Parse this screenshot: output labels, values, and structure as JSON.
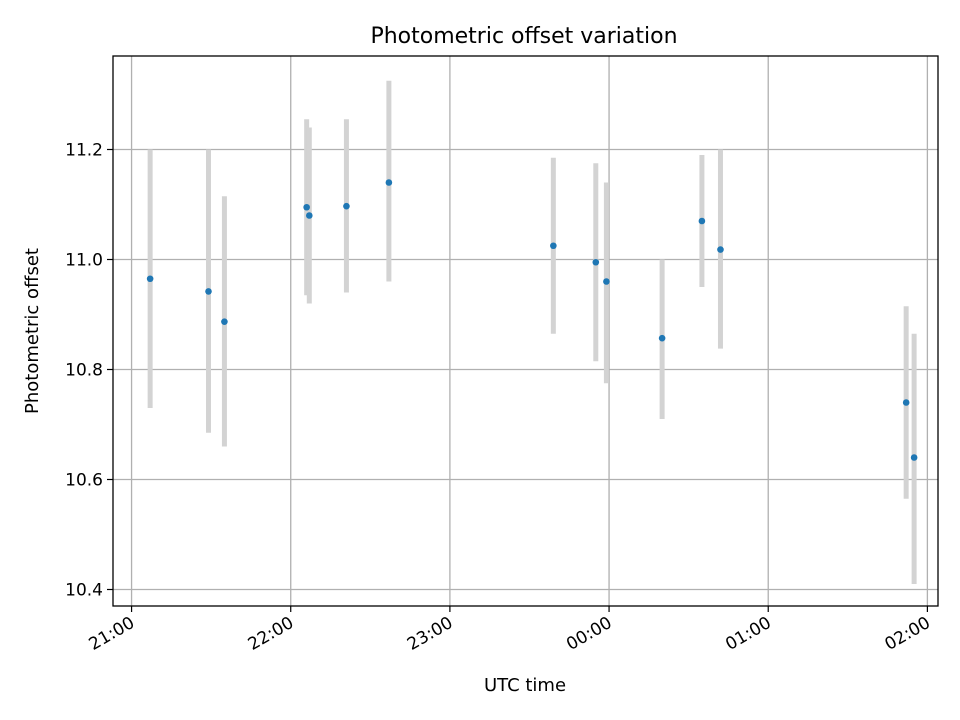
{
  "chart_data": {
    "type": "scatter",
    "title": "Photometric offset variation",
    "xlabel": "UTC time",
    "ylabel": "Photometric offset",
    "x_ticks": [
      "21:00",
      "22:00",
      "23:00",
      "00:00",
      "01:00",
      "02:00"
    ],
    "y_ticks": [
      "10.4",
      "10.6",
      "10.8",
      "11.0",
      "11.2"
    ],
    "xlim": [
      "20:53",
      "02:04"
    ],
    "ylim": [
      10.37,
      11.37
    ],
    "grid": true,
    "colors": {
      "points": "#1f77b4",
      "errorbars": "#d3d3d3",
      "grid": "#b0b0b0"
    },
    "points": [
      {
        "x": "21:07",
        "y": 10.965,
        "yerr_low": 10.73,
        "yerr_high": 11.2
      },
      {
        "x": "21:29",
        "y": 10.942,
        "yerr_low": 10.685,
        "yerr_high": 11.2
      },
      {
        "x": "21:35",
        "y": 10.887,
        "yerr_low": 10.66,
        "yerr_high": 11.115
      },
      {
        "x": "22:06",
        "y": 11.095,
        "yerr_low": 10.935,
        "yerr_high": 11.255
      },
      {
        "x": "22:07",
        "y": 11.08,
        "yerr_low": 10.92,
        "yerr_high": 11.24
      },
      {
        "x": "22:21",
        "y": 11.097,
        "yerr_low": 10.94,
        "yerr_high": 11.255
      },
      {
        "x": "22:37",
        "y": 11.14,
        "yerr_low": 10.96,
        "yerr_high": 11.325
      },
      {
        "x": "23:39",
        "y": 11.025,
        "yerr_low": 10.865,
        "yerr_high": 11.185
      },
      {
        "x": "23:55",
        "y": 10.995,
        "yerr_low": 10.815,
        "yerr_high": 11.175
      },
      {
        "x": "23:59",
        "y": 10.96,
        "yerr_low": 10.775,
        "yerr_high": 11.14
      },
      {
        "x": "00:20",
        "y": 10.857,
        "yerr_low": 10.71,
        "yerr_high": 11.0
      },
      {
        "x": "00:35",
        "y": 11.07,
        "yerr_low": 10.95,
        "yerr_high": 11.19
      },
      {
        "x": "00:42",
        "y": 11.018,
        "yerr_low": 10.838,
        "yerr_high": 11.2
      },
      {
        "x": "01:52",
        "y": 10.74,
        "yerr_low": 10.565,
        "yerr_high": 10.915
      },
      {
        "x": "01:55",
        "y": 10.64,
        "yerr_low": 10.41,
        "yerr_high": 10.865
      }
    ]
  }
}
